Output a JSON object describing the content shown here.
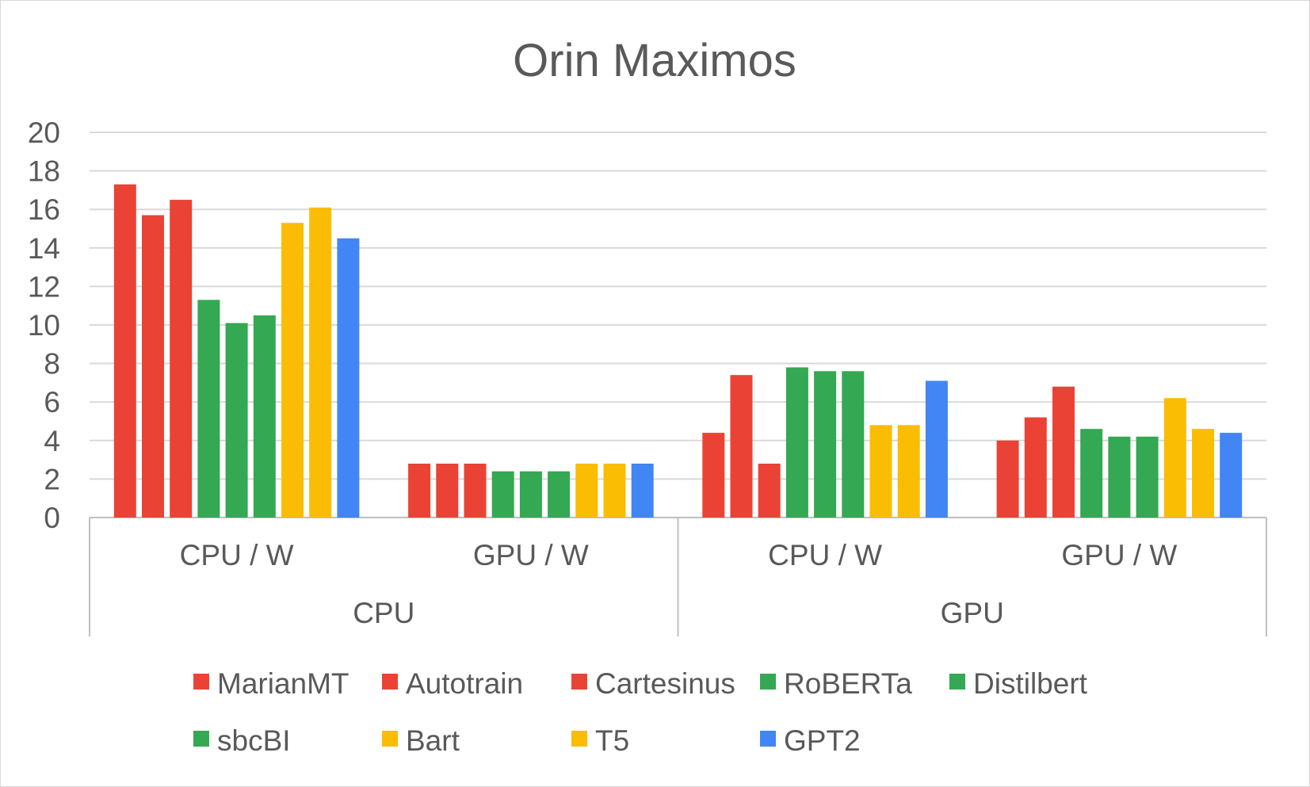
{
  "chart_data": {
    "type": "bar",
    "title": "Orin Maximos",
    "xlabel": "",
    "ylabel": "",
    "ylim": [
      0,
      20
    ],
    "yticks": [
      0,
      2,
      4,
      6,
      8,
      10,
      12,
      14,
      16,
      18,
      20
    ],
    "grid": true,
    "legend_position": "bottom",
    "groups": [
      {
        "label": "CPU",
        "categories": [
          "CPU / W",
          "GPU / W"
        ]
      },
      {
        "label": "GPU",
        "categories": [
          "CPU / W",
          "GPU / W"
        ]
      }
    ],
    "categories": [
      "CPU / W",
      "GPU / W",
      "CPU / W",
      "GPU / W"
    ],
    "series": [
      {
        "name": "MarianMT",
        "color": "#EA4335",
        "values": [
          17.3,
          2.8,
          4.4,
          4.0
        ]
      },
      {
        "name": "Autotrain",
        "color": "#EA4335",
        "values": [
          15.7,
          2.8,
          7.4,
          5.2
        ]
      },
      {
        "name": "Cartesinus",
        "color": "#EA4335",
        "values": [
          16.5,
          2.8,
          2.8,
          6.8
        ]
      },
      {
        "name": "RoBERTa",
        "color": "#34A853",
        "values": [
          11.3,
          2.4,
          7.8,
          4.6
        ]
      },
      {
        "name": "Distilbert",
        "color": "#34A853",
        "values": [
          10.1,
          2.4,
          7.6,
          4.2
        ]
      },
      {
        "name": "sbcBI",
        "color": "#34A853",
        "values": [
          10.5,
          2.4,
          7.6,
          4.2
        ]
      },
      {
        "name": "Bart",
        "color": "#FBBC04",
        "values": [
          15.3,
          2.8,
          4.8,
          6.2
        ]
      },
      {
        "name": "T5",
        "color": "#FBBC04",
        "values": [
          16.1,
          2.8,
          4.8,
          4.6
        ]
      },
      {
        "name": "GPT2",
        "color": "#4285F4",
        "values": [
          14.5,
          2.8,
          7.1,
          4.4
        ]
      }
    ]
  },
  "colors": {
    "gridline": "#d9d9d9",
    "axis": "#bfbfbf",
    "text": "#595959"
  }
}
